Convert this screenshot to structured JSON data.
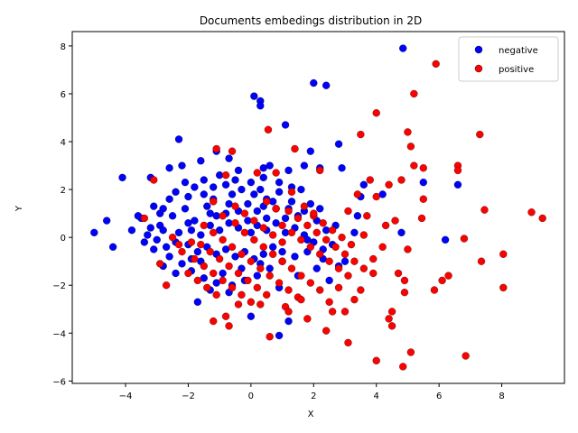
{
  "chart_data": {
    "type": "scatter",
    "title": "Documents embedings distribution in 2D",
    "xlabel": "X",
    "ylabel": "Y",
    "xlim": [
      -5.7,
      10.0
    ],
    "ylim": [
      -6.1,
      8.6
    ],
    "xticks": [
      -4,
      -2,
      0,
      2,
      4,
      6,
      8
    ],
    "yticks": [
      -6,
      -4,
      -2,
      0,
      2,
      4,
      6,
      8
    ],
    "grid": false,
    "legend": {
      "position": "top-right"
    },
    "series": [
      {
        "name": "negative",
        "color": "#0000ff",
        "points": [
          [
            4.85,
            7.9
          ],
          [
            2.0,
            6.45
          ],
          [
            2.4,
            6.35
          ],
          [
            0.1,
            5.9
          ],
          [
            0.3,
            5.7
          ],
          [
            0.3,
            5.5
          ],
          [
            1.1,
            4.7
          ],
          [
            -2.3,
            4.1
          ],
          [
            2.8,
            3.9
          ],
          [
            1.9,
            3.6
          ],
          [
            -1.6,
            3.2
          ],
          [
            -0.7,
            3.3
          ],
          [
            0.6,
            3.0
          ],
          [
            1.7,
            3.0
          ],
          [
            2.2,
            2.9
          ],
          [
            2.9,
            2.9
          ],
          [
            -2.6,
            2.9
          ],
          [
            -2.2,
            3.0
          ],
          [
            -4.1,
            2.5
          ],
          [
            -3.2,
            2.5
          ],
          [
            5.5,
            2.3
          ],
          [
            6.6,
            2.2
          ],
          [
            3.6,
            2.2
          ],
          [
            -4.6,
            0.7
          ],
          [
            -4.4,
            -0.4
          ],
          [
            -5.0,
            0.2
          ],
          [
            0.9,
            -4.1
          ],
          [
            0.0,
            -3.3
          ],
          [
            1.2,
            -3.5
          ],
          [
            6.2,
            -0.1
          ],
          [
            -1.7,
            -2.7
          ],
          [
            -0.7,
            -2.3
          ],
          [
            2.5,
            -1.8
          ],
          [
            2.8,
            -1.2
          ],
          [
            2.3,
            -0.9
          ],
          [
            3.0,
            -1.0
          ],
          [
            3.4,
            0.9
          ],
          [
            3.5,
            1.7
          ],
          [
            3.3,
            0.2
          ],
          [
            -3.1,
            1.3
          ],
          [
            -2.8,
            1.2
          ],
          [
            -2.4,
            1.9
          ],
          [
            -2.0,
            1.7
          ],
          [
            -1.5,
            1.8
          ],
          [
            -1.2,
            2.1
          ],
          [
            -0.8,
            2.2
          ],
          [
            -0.3,
            2.0
          ],
          [
            0.1,
            1.8
          ],
          [
            0.5,
            1.6
          ],
          [
            0.9,
            1.9
          ],
          [
            1.3,
            1.5
          ],
          [
            1.7,
            1.1
          ],
          [
            2.1,
            0.7
          ],
          [
            2.4,
            0.3
          ],
          [
            -3.5,
            0.8
          ],
          [
            -3.2,
            0.4
          ],
          [
            -3.0,
            -0.1
          ],
          [
            -2.7,
            -0.4
          ],
          [
            -2.9,
            0.5
          ],
          [
            -2.5,
            0.9
          ],
          [
            -2.1,
            1.2
          ],
          [
            -1.8,
            0.7
          ],
          [
            -1.4,
            1.3
          ],
          [
            -1.1,
            0.9
          ],
          [
            -0.7,
            1.4
          ],
          [
            -0.4,
            1.1
          ],
          [
            -0.1,
            1.4
          ],
          [
            0.2,
            1.1
          ],
          [
            0.5,
            0.8
          ],
          [
            0.8,
            1.2
          ],
          [
            1.1,
            0.8
          ],
          [
            1.4,
            0.4
          ],
          [
            1.7,
            0.1
          ],
          [
            2.0,
            -0.2
          ],
          [
            2.3,
            -0.5
          ],
          [
            -3.4,
            -0.2
          ],
          [
            -3.1,
            -0.5
          ],
          [
            -2.6,
            -0.8
          ],
          [
            -2.2,
            -1.1
          ],
          [
            -1.9,
            -1.4
          ],
          [
            -1.5,
            -1.7
          ],
          [
            -1.1,
            -1.9
          ],
          [
            -0.6,
            -2.0
          ],
          [
            -0.2,
            -1.8
          ],
          [
            0.2,
            -1.6
          ],
          [
            0.6,
            -1.3
          ],
          [
            1.0,
            -1.0
          ],
          [
            1.4,
            -0.8
          ],
          [
            1.8,
            -0.6
          ],
          [
            -2.3,
            0.2
          ],
          [
            -1.9,
            0.3
          ],
          [
            -1.6,
            0.1
          ],
          [
            -1.3,
            0.5
          ],
          [
            -1.0,
            0.3
          ],
          [
            -0.7,
            0.6
          ],
          [
            -0.4,
            0.4
          ],
          [
            -0.1,
            0.7
          ],
          [
            0.2,
            0.5
          ],
          [
            0.5,
            0.3
          ],
          [
            0.8,
            0.6
          ],
          [
            1.1,
            0.2
          ],
          [
            -2.0,
            -0.3
          ],
          [
            -1.7,
            -0.6
          ],
          [
            -1.4,
            -0.4
          ],
          [
            -1.1,
            -0.7
          ],
          [
            -0.8,
            -0.5
          ],
          [
            -0.5,
            -0.8
          ],
          [
            -0.2,
            -0.6
          ],
          [
            0.1,
            -0.9
          ],
          [
            0.4,
            -0.7
          ],
          [
            0.7,
            -0.4
          ],
          [
            1.0,
            -0.6
          ],
          [
            -1.5,
            2.4
          ],
          [
            -1.0,
            2.6
          ],
          [
            -0.5,
            2.4
          ],
          [
            0.0,
            2.3
          ],
          [
            0.4,
            2.5
          ],
          [
            0.9,
            2.3
          ],
          [
            1.3,
            2.1
          ],
          [
            1.6,
            2.0
          ],
          [
            -2.6,
            1.6
          ],
          [
            -2.9,
            1.0
          ],
          [
            -3.3,
            0.1
          ],
          [
            -2.8,
            -1.2
          ],
          [
            -2.4,
            -1.5
          ],
          [
            -1.3,
            -2.2
          ],
          [
            -0.9,
            -1.5
          ],
          [
            -0.3,
            -1.3
          ],
          [
            0.3,
            -1.1
          ],
          [
            0.9,
            -2.1
          ],
          [
            1.5,
            -1.6
          ],
          [
            2.1,
            -1.3
          ],
          [
            2.6,
            -0.3
          ],
          [
            2.7,
            0.5
          ],
          [
            1.9,
            1.4
          ],
          [
            2.2,
            1.2
          ],
          [
            -1.2,
            1.6
          ],
          [
            -0.6,
            1.8
          ],
          [
            0.3,
            2.0
          ],
          [
            0.7,
            1.5
          ],
          [
            -2.1,
            2.3
          ],
          [
            -1.8,
            2.1
          ],
          [
            -1.9,
            -0.9
          ],
          [
            -2.4,
            -0.2
          ],
          [
            -0.4,
            2.8
          ],
          [
            1.2,
            2.8
          ],
          [
            -3.6,
            0.9
          ],
          [
            -3.8,
            0.3
          ],
          [
            4.2,
            1.8
          ],
          [
            4.8,
            0.2
          ],
          [
            -1.1,
            3.6
          ],
          [
            0.4,
            2.9
          ],
          [
            -2.0,
            0.6
          ],
          [
            -0.8,
            1.0
          ],
          [
            0.0,
            0.2
          ],
          [
            0.4,
            1.3
          ],
          [
            -1.6,
            -1.0
          ],
          [
            -1.3,
            1.0
          ],
          [
            1.2,
            1.2
          ],
          [
            1.5,
            0.9
          ],
          [
            1.8,
            -0.1
          ],
          [
            -2.8,
            0.3
          ]
        ]
      },
      {
        "name": "positive",
        "color": "#ff0000",
        "points": [
          [
            5.9,
            7.25
          ],
          [
            5.2,
            6.0
          ],
          [
            4.0,
            5.2
          ],
          [
            5.0,
            4.4
          ],
          [
            7.3,
            4.3
          ],
          [
            0.55,
            4.5
          ],
          [
            3.5,
            4.3
          ],
          [
            5.1,
            3.8
          ],
          [
            1.4,
            3.7
          ],
          [
            -1.1,
            3.7
          ],
          [
            -0.6,
            3.6
          ],
          [
            5.2,
            3.0
          ],
          [
            5.5,
            2.9
          ],
          [
            6.6,
            3.0
          ],
          [
            6.6,
            2.8
          ],
          [
            4.8,
            2.4
          ],
          [
            4.4,
            2.2
          ],
          [
            5.5,
            1.6
          ],
          [
            7.45,
            1.15
          ],
          [
            8.95,
            1.05
          ],
          [
            9.3,
            0.8
          ],
          [
            4.0,
            1.7
          ],
          [
            4.6,
            0.7
          ],
          [
            5.45,
            0.8
          ],
          [
            6.8,
            -0.05
          ],
          [
            8.05,
            -0.7
          ],
          [
            7.35,
            -1.0
          ],
          [
            6.3,
            -1.6
          ],
          [
            6.1,
            -1.8
          ],
          [
            5.85,
            -2.2
          ],
          [
            4.9,
            -2.3
          ],
          [
            4.5,
            -3.1
          ],
          [
            4.4,
            -3.4
          ],
          [
            4.5,
            -3.7
          ],
          [
            3.1,
            -4.4
          ],
          [
            4.0,
            -5.15
          ],
          [
            4.85,
            -5.4
          ],
          [
            5.1,
            -4.8
          ],
          [
            6.85,
            -4.95
          ],
          [
            8.05,
            -2.1
          ],
          [
            2.4,
            -3.9
          ],
          [
            -0.7,
            -3.7
          ],
          [
            0.6,
            -4.15
          ],
          [
            -3.4,
            0.8
          ],
          [
            -3.1,
            2.4
          ],
          [
            -2.9,
            -1.1
          ],
          [
            -2.7,
            -2.0
          ],
          [
            -1.2,
            -3.5
          ],
          [
            -0.8,
            -3.3
          ],
          [
            0.3,
            -2.8
          ],
          [
            1.1,
            -2.9
          ],
          [
            1.8,
            -3.4
          ],
          [
            2.6,
            -3.1
          ],
          [
            3.0,
            -3.1
          ],
          [
            3.5,
            -2.2
          ],
          [
            3.9,
            -1.5
          ],
          [
            4.2,
            -0.4
          ],
          [
            3.6,
            0.1
          ],
          [
            3.1,
            1.1
          ],
          [
            3.8,
            2.4
          ],
          [
            3.4,
            1.8
          ],
          [
            2.2,
            2.8
          ],
          [
            1.3,
            1.9
          ],
          [
            0.8,
            2.7
          ],
          [
            0.2,
            2.7
          ],
          [
            -0.8,
            2.6
          ],
          [
            -1.2,
            1.5
          ],
          [
            -0.9,
            0.9
          ],
          [
            -0.5,
            0.6
          ],
          [
            -0.2,
            0.2
          ],
          [
            0.1,
            -0.1
          ],
          [
            0.4,
            -0.4
          ],
          [
            0.7,
            -0.7
          ],
          [
            1.0,
            -1.0
          ],
          [
            1.3,
            -1.3
          ],
          [
            1.6,
            -1.6
          ],
          [
            1.9,
            -1.9
          ],
          [
            2.2,
            -2.2
          ],
          [
            -1.6,
            -0.3
          ],
          [
            -1.3,
            -0.6
          ],
          [
            -1.0,
            -0.9
          ],
          [
            -0.7,
            -1.2
          ],
          [
            -0.4,
            -1.5
          ],
          [
            -0.1,
            -1.8
          ],
          [
            0.2,
            -2.1
          ],
          [
            0.5,
            -2.4
          ],
          [
            -1.5,
            0.5
          ],
          [
            -1.2,
            0.2
          ],
          [
            -0.9,
            -0.1
          ],
          [
            -0.6,
            -0.4
          ],
          [
            -0.3,
            -0.7
          ],
          [
            0.0,
            -1.0
          ],
          [
            0.3,
            -1.3
          ],
          [
            0.6,
            -1.6
          ],
          [
            0.9,
            -1.9
          ],
          [
            1.2,
            -2.2
          ],
          [
            1.5,
            -2.5
          ],
          [
            -1.8,
            -0.9
          ],
          [
            -1.5,
            -1.2
          ],
          [
            -1.2,
            -1.5
          ],
          [
            -0.9,
            -1.8
          ],
          [
            -0.6,
            -2.1
          ],
          [
            -0.3,
            -2.4
          ],
          [
            0.0,
            -2.7
          ],
          [
            1.0,
            0.5
          ],
          [
            1.3,
            0.2
          ],
          [
            1.6,
            -0.1
          ],
          [
            1.9,
            -0.4
          ],
          [
            2.2,
            -0.7
          ],
          [
            2.5,
            -1.0
          ],
          [
            2.8,
            -1.3
          ],
          [
            3.1,
            -1.6
          ],
          [
            1.2,
            1.1
          ],
          [
            1.5,
            0.8
          ],
          [
            1.8,
            0.5
          ],
          [
            2.1,
            0.2
          ],
          [
            2.4,
            -0.1
          ],
          [
            2.7,
            -0.4
          ],
          [
            3.0,
            -0.7
          ],
          [
            3.3,
            -1.0
          ],
          [
            3.6,
            -1.3
          ],
          [
            2.0,
            0.9
          ],
          [
            2.3,
            0.6
          ],
          [
            2.6,
            0.3
          ],
          [
            2.9,
            0.0
          ],
          [
            3.2,
            -0.3
          ],
          [
            -2.0,
            -1.5
          ],
          [
            -1.7,
            -1.8
          ],
          [
            -1.4,
            -2.1
          ],
          [
            -1.1,
            -2.4
          ],
          [
            -2.2,
            -0.6
          ],
          [
            -1.9,
            -0.2
          ],
          [
            -0.2,
            1.0
          ],
          [
            0.1,
            0.7
          ],
          [
            0.4,
            0.4
          ],
          [
            0.7,
            0.1
          ],
          [
            1.0,
            -0.2
          ],
          [
            0.5,
            1.5
          ],
          [
            0.8,
            1.2
          ],
          [
            -0.5,
            1.3
          ],
          [
            1.7,
            1.3
          ],
          [
            2.0,
            1.0
          ],
          [
            -2.5,
            0.0
          ],
          [
            -2.3,
            -0.3
          ],
          [
            4.7,
            -1.5
          ],
          [
            5.0,
            -0.5
          ],
          [
            4.3,
            0.5
          ],
          [
            3.7,
            0.9
          ],
          [
            4.9,
            -1.8
          ],
          [
            3.3,
            -2.6
          ],
          [
            2.8,
            -2.1
          ],
          [
            1.6,
            -2.6
          ],
          [
            -0.4,
            -2.8
          ],
          [
            1.2,
            -3.1
          ],
          [
            2.5,
            -2.7
          ],
          [
            3.9,
            -0.9
          ]
        ]
      }
    ]
  }
}
